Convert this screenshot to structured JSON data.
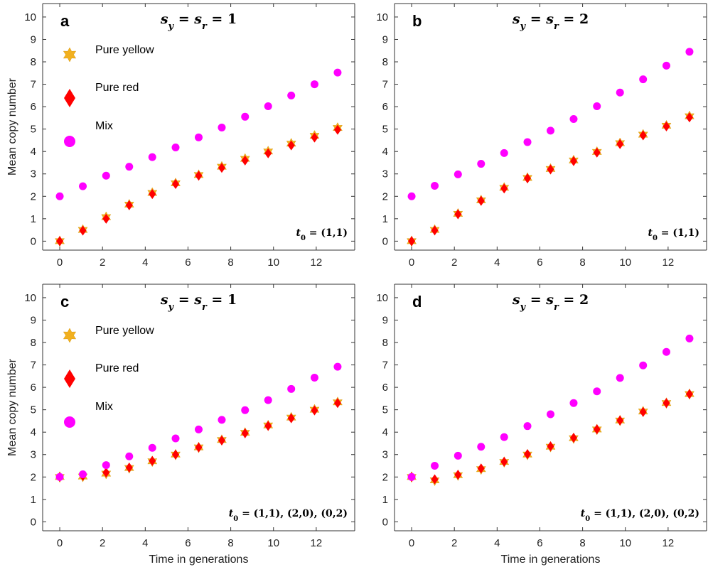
{
  "colors": {
    "yellow": "#F2B01E",
    "red": "#FF0000",
    "mix": "#FF00FF",
    "axis": "#333333"
  },
  "axis_labels": {
    "y": "Mean copy number",
    "x": "Time in generations"
  },
  "legend": {
    "yellow": "Pure yellow",
    "red": "Pure red",
    "mix": "Mix"
  },
  "chart_data": [
    {
      "type": "scatter",
      "panel": "a",
      "title": "s_y = s_r = 1",
      "annotation": "t_0 = (1,1)",
      "xlim": [
        -0.8,
        13.8
      ],
      "ylim": [
        -0.4,
        10.6
      ],
      "xticks": [
        0,
        2,
        4,
        6,
        8,
        10,
        12
      ],
      "yticks": [
        0,
        1,
        2,
        3,
        4,
        5,
        6,
        7,
        8,
        9,
        10
      ],
      "legend_shown": true,
      "series": [
        {
          "name": "Pure yellow",
          "marker": "star",
          "x": [
            0,
            1.08,
            2.17,
            3.25,
            4.33,
            5.42,
            6.5,
            7.58,
            8.67,
            9.75,
            10.83,
            11.92,
            13
          ],
          "y": [
            0,
            0.5,
            1.07,
            1.63,
            2.15,
            2.58,
            2.95,
            3.32,
            3.67,
            4.0,
            4.35,
            4.7,
            5.05
          ]
        },
        {
          "name": "Pure red",
          "marker": "diamond",
          "x": [
            0,
            1.08,
            2.17,
            3.25,
            4.33,
            5.42,
            6.5,
            7.58,
            8.67,
            9.75,
            10.83,
            11.92,
            13
          ],
          "y": [
            0,
            0.47,
            1.0,
            1.6,
            2.1,
            2.55,
            2.92,
            3.27,
            3.6,
            3.92,
            4.27,
            4.62,
            4.97
          ]
        },
        {
          "name": "Mix",
          "marker": "circle",
          "x": [
            0,
            1.08,
            2.17,
            3.25,
            4.33,
            5.42,
            6.5,
            7.58,
            8.67,
            9.75,
            10.83,
            11.92,
            13
          ],
          "y": [
            2.0,
            2.45,
            2.92,
            3.32,
            3.75,
            4.18,
            4.63,
            5.07,
            5.55,
            6.02,
            6.5,
            7.0,
            7.52
          ]
        }
      ]
    },
    {
      "type": "scatter",
      "panel": "b",
      "title": "s_y = s_r = 2",
      "annotation": "t_0 = (1,1)",
      "xlim": [
        -0.8,
        13.8
      ],
      "ylim": [
        -0.4,
        10.6
      ],
      "xticks": [
        0,
        2,
        4,
        6,
        8,
        10,
        12
      ],
      "yticks": [
        0,
        1,
        2,
        3,
        4,
        5,
        6,
        7,
        8,
        9,
        10
      ],
      "legend_shown": false,
      "series": [
        {
          "name": "Pure yellow",
          "marker": "star",
          "x": [
            0,
            1.08,
            2.17,
            3.25,
            4.33,
            5.42,
            6.5,
            7.58,
            8.67,
            9.75,
            10.83,
            11.92,
            13
          ],
          "y": [
            0,
            0.5,
            1.22,
            1.82,
            2.38,
            2.82,
            3.22,
            3.6,
            3.98,
            4.37,
            4.75,
            5.15,
            5.57
          ]
        },
        {
          "name": "Pure red",
          "marker": "diamond",
          "x": [
            0,
            1.08,
            2.17,
            3.25,
            4.33,
            5.42,
            6.5,
            7.58,
            8.67,
            9.75,
            10.83,
            11.92,
            13
          ],
          "y": [
            0,
            0.48,
            1.2,
            1.8,
            2.35,
            2.8,
            3.2,
            3.57,
            3.95,
            4.33,
            4.72,
            5.12,
            5.52
          ]
        },
        {
          "name": "Mix",
          "marker": "circle",
          "x": [
            0,
            1.08,
            2.17,
            3.25,
            4.33,
            5.42,
            6.5,
            7.58,
            8.67,
            9.75,
            10.83,
            11.92,
            13
          ],
          "y": [
            2.0,
            2.47,
            2.98,
            3.45,
            3.93,
            4.42,
            4.93,
            5.45,
            6.02,
            6.63,
            7.22,
            7.83,
            8.45
          ]
        }
      ]
    },
    {
      "type": "scatter",
      "panel": "c",
      "title": "s_y = s_r = 1",
      "annotation": "t_0 = (1,1), (2,0), (0,2)",
      "xlim": [
        -0.8,
        13.8
      ],
      "ylim": [
        -0.4,
        10.6
      ],
      "xticks": [
        0,
        2,
        4,
        6,
        8,
        10,
        12
      ],
      "yticks": [
        0,
        1,
        2,
        3,
        4,
        5,
        6,
        7,
        8,
        9,
        10
      ],
      "legend_shown": true,
      "series": [
        {
          "name": "Pure yellow",
          "marker": "star",
          "x": [
            0,
            1.08,
            2.17,
            3.25,
            4.33,
            5.42,
            6.5,
            7.58,
            8.67,
            9.75,
            10.83,
            11.92,
            13
          ],
          "y": [
            2.0,
            2.02,
            2.15,
            2.4,
            2.7,
            3.0,
            3.32,
            3.65,
            3.97,
            4.3,
            4.65,
            5.0,
            5.33
          ]
        },
        {
          "name": "Pure red",
          "marker": "diamond",
          "x": [
            0,
            1.08,
            2.17,
            3.25,
            4.33,
            5.42,
            6.5,
            7.58,
            8.67,
            9.75,
            10.83,
            11.92,
            13
          ],
          "y": [
            2.0,
            2.05,
            2.2,
            2.42,
            2.72,
            3.0,
            3.32,
            3.63,
            3.95,
            4.28,
            4.62,
            4.97,
            5.3
          ]
        },
        {
          "name": "Mix",
          "marker": "circle",
          "x": [
            0,
            1.08,
            2.17,
            3.25,
            4.33,
            5.42,
            6.5,
            7.58,
            8.67,
            9.75,
            10.83,
            11.92,
            13
          ],
          "y": [
            2.0,
            2.12,
            2.53,
            2.92,
            3.3,
            3.72,
            4.12,
            4.55,
            4.98,
            5.43,
            5.93,
            6.43,
            6.92
          ]
        }
      ]
    },
    {
      "type": "scatter",
      "panel": "d",
      "title": "s_y = s_r = 2",
      "annotation": "t_0 = (1,1), (2,0), (0,2)",
      "xlim": [
        -0.8,
        13.8
      ],
      "ylim": [
        -0.4,
        10.6
      ],
      "xticks": [
        0,
        2,
        4,
        6,
        8,
        10,
        12
      ],
      "yticks": [
        0,
        1,
        2,
        3,
        4,
        5,
        6,
        7,
        8,
        9,
        10
      ],
      "legend_shown": false,
      "series": [
        {
          "name": "Pure yellow",
          "marker": "star",
          "x": [
            0,
            1.08,
            2.17,
            3.25,
            4.33,
            5.42,
            6.5,
            7.58,
            8.67,
            9.75,
            10.83,
            11.92,
            13
          ],
          "y": [
            2.0,
            1.85,
            2.08,
            2.35,
            2.67,
            3.0,
            3.35,
            3.73,
            4.12,
            4.52,
            4.92,
            5.3,
            5.7
          ]
        },
        {
          "name": "Pure red",
          "marker": "diamond",
          "x": [
            0,
            1.08,
            2.17,
            3.25,
            4.33,
            5.42,
            6.5,
            7.58,
            8.67,
            9.75,
            10.83,
            11.92,
            13
          ],
          "y": [
            2.0,
            1.9,
            2.1,
            2.38,
            2.68,
            3.02,
            3.37,
            3.75,
            4.13,
            4.52,
            4.9,
            5.3,
            5.7
          ]
        },
        {
          "name": "Mix",
          "marker": "circle",
          "x": [
            0,
            1.08,
            2.17,
            3.25,
            4.33,
            5.42,
            6.5,
            7.58,
            8.67,
            9.75,
            10.83,
            11.92,
            13
          ],
          "y": [
            2.0,
            2.5,
            2.95,
            3.35,
            3.78,
            4.27,
            4.8,
            5.3,
            5.82,
            6.42,
            6.98,
            7.58,
            8.18
          ]
        }
      ]
    }
  ]
}
